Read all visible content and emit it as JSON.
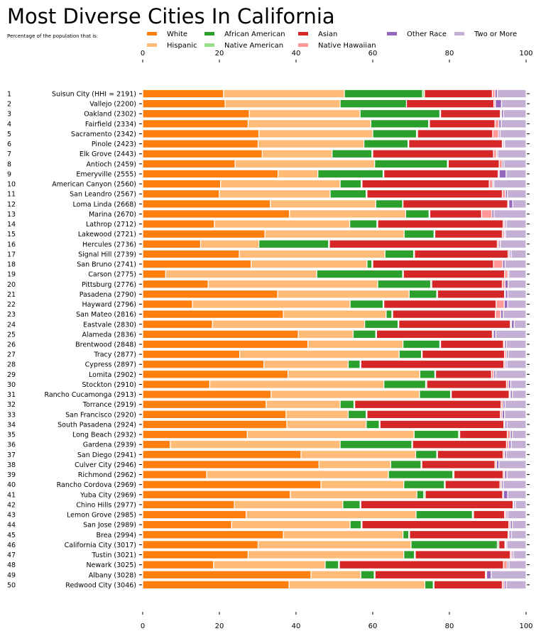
{
  "chart_data": {
    "type": "bar",
    "orientation": "horizontal-stacked",
    "title": "Most Diverse Cities In California",
    "subtitle": "Percentage of the population that is:",
    "xlim": [
      0,
      100
    ],
    "xticks": [
      "0",
      "20",
      "40",
      "60",
      "80",
      "100"
    ],
    "legend_position": "top",
    "grid": false,
    "series": [
      {
        "name": "White",
        "color": "#ff7f0e"
      },
      {
        "name": "Hispanic",
        "color": "#ffbb78"
      },
      {
        "name": "African American",
        "color": "#2ca02c"
      },
      {
        "name": "Native American",
        "color": "#98df8a"
      },
      {
        "name": "Asian",
        "color": "#d62728"
      },
      {
        "name": "Native Hawaiian",
        "color": "#ff9896"
      },
      {
        "name": "Other Race",
        "color": "#9467bd"
      },
      {
        "name": "Two or More",
        "color": "#c5b0d5"
      }
    ],
    "rows": [
      {
        "rank": "1",
        "city": "Suisun City (HHI = 2191)",
        "values": [
          21.1,
          31.5,
          20.4,
          0.5,
          17.7,
          0.7,
          0.6,
          7.5
        ]
      },
      {
        "rank": "2",
        "city": "Vallejo (2200)",
        "values": [
          21.5,
          30.0,
          17.3,
          0.0,
          22.8,
          0.4,
          1.6,
          6.4
        ]
      },
      {
        "rank": "3",
        "city": "Oakland (2302)",
        "values": [
          27.8,
          28.9,
          20.8,
          0.2,
          15.6,
          0.3,
          0.5,
          5.9
        ]
      },
      {
        "rank": "4",
        "city": "Fairfield (2334)",
        "values": [
          27.5,
          32.0,
          15.1,
          0.2,
          17.1,
          1.0,
          0.6,
          6.5
        ]
      },
      {
        "rank": "5",
        "city": "Sacramento (2342)",
        "values": [
          30.3,
          29.7,
          11.4,
          0.3,
          19.6,
          1.5,
          0.4,
          6.8
        ]
      },
      {
        "rank": "6",
        "city": "Pinole (2423)",
        "values": [
          30.1,
          27.6,
          11.5,
          0.2,
          24.4,
          0.3,
          0.3,
          5.6
        ]
      },
      {
        "rank": "7",
        "city": "Elk Grove (2443)",
        "values": [
          31.2,
          18.2,
          10.4,
          0.2,
          31.5,
          0.8,
          0.3,
          7.4
        ]
      },
      {
        "rank": "8",
        "city": "Antioch (2459)",
        "values": [
          24.1,
          36.4,
          19.0,
          0.2,
          13.3,
          0.8,
          0.4,
          5.8
        ]
      },
      {
        "rank": "9",
        "city": "Emeryville (2555)",
        "values": [
          35.3,
          10.4,
          17.0,
          0.2,
          29.8,
          0.3,
          1.8,
          5.2
        ]
      },
      {
        "rank": "10",
        "city": "American Canyon (2560)",
        "values": [
          20.3,
          31.2,
          5.5,
          0.2,
          33.2,
          0.9,
          0.3,
          8.4
        ]
      },
      {
        "rank": "11",
        "city": "San Leandro (2567)",
        "values": [
          20.0,
          28.9,
          9.4,
          0.2,
          35.3,
          0.8,
          0.5,
          4.9
        ]
      },
      {
        "rank": "12",
        "city": "Loma Linda (2668)",
        "values": [
          33.3,
          27.5,
          7.0,
          0.1,
          27.3,
          0.3,
          1.0,
          3.5
        ]
      },
      {
        "rank": "13",
        "city": "Marina (2670)",
        "values": [
          38.3,
          30.3,
          6.1,
          0.2,
          13.5,
          2.7,
          0.5,
          8.4
        ]
      },
      {
        "rank": "14",
        "city": "Lathrop (2712)",
        "values": [
          18.7,
          35.3,
          7.1,
          0.2,
          32.7,
          0.4,
          0.4,
          5.2
        ]
      },
      {
        "rank": "15",
        "city": "Lakewood (2721)",
        "values": [
          31.9,
          36.3,
          7.8,
          0.2,
          17.6,
          0.5,
          0.3,
          5.4
        ]
      },
      {
        "rank": "16",
        "city": "Hercules (2736)",
        "values": [
          15.1,
          15.2,
          18.2,
          0.2,
          43.8,
          0.4,
          0.4,
          6.7
        ]
      },
      {
        "rank": "17",
        "city": "Signal Hill (2739)",
        "values": [
          25.2,
          38.0,
          7.5,
          0.2,
          24.4,
          0.4,
          0.4,
          3.9
        ]
      },
      {
        "rank": "18",
        "city": "San Bruno (2741)",
        "values": [
          28.3,
          30.2,
          1.3,
          0.2,
          31.5,
          2.4,
          0.6,
          5.5
        ]
      },
      {
        "rank": "19",
        "city": "Carson (2775)",
        "values": [
          6.0,
          39.4,
          22.4,
          0.2,
          26.4,
          0.8,
          0.3,
          4.5
        ]
      },
      {
        "rank": "20",
        "city": "Pittsburg (2776)",
        "values": [
          17.1,
          44.2,
          13.8,
          0.3,
          18.4,
          0.7,
          0.8,
          4.7
        ]
      },
      {
        "rank": "21",
        "city": "Pasadena (2790)",
        "values": [
          35.2,
          34.3,
          7.2,
          0.2,
          17.5,
          0.2,
          0.6,
          4.8
        ]
      },
      {
        "rank": "22",
        "city": "Hayward (2796)",
        "values": [
          13.0,
          41.1,
          8.6,
          0.2,
          29.3,
          2.1,
          0.9,
          4.8
        ]
      },
      {
        "rank": "23",
        "city": "San Mateo (2816)",
        "values": [
          36.7,
          26.8,
          1.5,
          0.2,
          26.8,
          1.4,
          0.6,
          6.0
        ]
      },
      {
        "rank": "24",
        "city": "Eastvale (2830)",
        "values": [
          18.2,
          39.7,
          8.7,
          0.2,
          29.1,
          0.3,
          0.7,
          3.1
        ]
      },
      {
        "rank": "25",
        "city": "Alameda (2836)",
        "values": [
          40.6,
          14.3,
          5.9,
          0.2,
          30.2,
          0.3,
          0.6,
          7.9
        ]
      },
      {
        "rank": "26",
        "city": "Brentwood (2848)",
        "values": [
          43.1,
          24.8,
          9.6,
          0.2,
          16.4,
          0.3,
          0.5,
          5.1
        ]
      },
      {
        "rank": "27",
        "city": "Tracy (2877)",
        "values": [
          25.3,
          41.6,
          5.8,
          0.2,
          21.5,
          0.5,
          0.4,
          4.7
        ]
      },
      {
        "rank": "28",
        "city": "Cypress (2897)",
        "values": [
          31.6,
          22.0,
          3.1,
          0.2,
          37.3,
          0.4,
          0.4,
          5.0
        ]
      },
      {
        "rank": "29",
        "city": "Lomita (2902)",
        "values": [
          37.9,
          34.4,
          3.9,
          0.2,
          14.6,
          0.6,
          0.5,
          7.9
        ]
      },
      {
        "rank": "30",
        "city": "Stockton (2910)",
        "values": [
          17.5,
          45.4,
          10.9,
          0.3,
          20.8,
          0.5,
          0.6,
          4.0
        ]
      },
      {
        "rank": "31",
        "city": "Rancho Cucamonga (2913)",
        "values": [
          33.5,
          38.7,
          8.1,
          0.2,
          15.1,
          0.3,
          0.5,
          3.6
        ]
      },
      {
        "rank": "32",
        "city": "Torrance (2919)",
        "values": [
          32.2,
          19.3,
          3.6,
          0.2,
          38.2,
          0.5,
          0.5,
          5.5
        ]
      },
      {
        "rank": "33",
        "city": "San Francisco (2920)",
        "values": [
          37.4,
          16.2,
          4.7,
          0.2,
          34.8,
          0.5,
          0.6,
          5.6
        ]
      },
      {
        "rank": "34",
        "city": "South Pasadena (2924)",
        "values": [
          37.6,
          20.7,
          3.4,
          0.2,
          32.3,
          0.3,
          0.5,
          5.0
        ]
      },
      {
        "rank": "35",
        "city": "Long Beach (2932)",
        "values": [
          27.3,
          43.5,
          11.6,
          0.3,
          12.4,
          0.8,
          0.5,
          3.6
        ]
      },
      {
        "rank": "36",
        "city": "Gardena (2939)",
        "values": [
          7.2,
          44.3,
          18.7,
          0.2,
          24.5,
          0.6,
          0.6,
          3.9
        ]
      },
      {
        "rank": "37",
        "city": "San Diego (2941)",
        "values": [
          41.3,
          29.9,
          5.5,
          0.2,
          17.1,
          0.4,
          0.5,
          5.1
        ]
      },
      {
        "rank": "38",
        "city": "Culver City (2946)",
        "values": [
          46.0,
          18.7,
          7.9,
          0.2,
          19.1,
          0.4,
          0.6,
          7.1
        ]
      },
      {
        "rank": "39",
        "city": "Richmond (2962)",
        "values": [
          16.7,
          47.4,
          16.8,
          0.3,
          12.8,
          0.4,
          0.6,
          5.0
        ]
      },
      {
        "rank": "40",
        "city": "Rancho Cordova (2969)",
        "values": [
          46.5,
          21.6,
          10.6,
          0.2,
          14.3,
          0.4,
          0.4,
          6.0
        ]
      },
      {
        "rank": "41",
        "city": "Yuba City (2969)",
        "values": [
          38.5,
          33.0,
          1.8,
          0.4,
          20.2,
          0.2,
          1.1,
          4.8
        ]
      },
      {
        "rank": "42",
        "city": "Chino Hills (2977)",
        "values": [
          23.9,
          28.3,
          4.5,
          0.2,
          39.7,
          0.2,
          0.4,
          2.8
        ]
      },
      {
        "rank": "43",
        "city": "Lemon Grove (2985)",
        "values": [
          27.0,
          44.3,
          14.7,
          0.3,
          8.1,
          0.4,
          0.4,
          4.8
        ]
      },
      {
        "rank": "44",
        "city": "San Jose (2989)",
        "values": [
          23.2,
          30.9,
          2.9,
          0.2,
          38.3,
          0.4,
          0.5,
          3.6
        ]
      },
      {
        "rank": "45",
        "city": "Brea (2994)",
        "values": [
          36.7,
          31.2,
          1.5,
          0.2,
          25.7,
          0.3,
          0.5,
          3.9
        ]
      },
      {
        "rank": "46",
        "city": "California City (3017)",
        "values": [
          30.1,
          39.9,
          22.5,
          0.4,
          1.6,
          0.2,
          0.3,
          5.0
        ]
      },
      {
        "rank": "47",
        "city": "Tustin (3021)",
        "values": [
          27.5,
          40.6,
          2.8,
          0.2,
          24.8,
          0.4,
          0.4,
          3.3
        ]
      },
      {
        "rank": "48",
        "city": "Newark (3025)",
        "values": [
          18.5,
          29.1,
          3.5,
          0.2,
          42.8,
          1.0,
          0.4,
          4.5
        ]
      },
      {
        "rank": "49",
        "city": "Albany (3028)",
        "values": [
          43.9,
          13.0,
          3.5,
          0.2,
          28.8,
          0.3,
          1.2,
          9.1
        ]
      },
      {
        "rank": "50",
        "city": "Redwood City (3046)",
        "values": [
          38.2,
          35.4,
          2.2,
          0.2,
          17.8,
          0.5,
          0.5,
          5.2
        ]
      }
    ]
  }
}
